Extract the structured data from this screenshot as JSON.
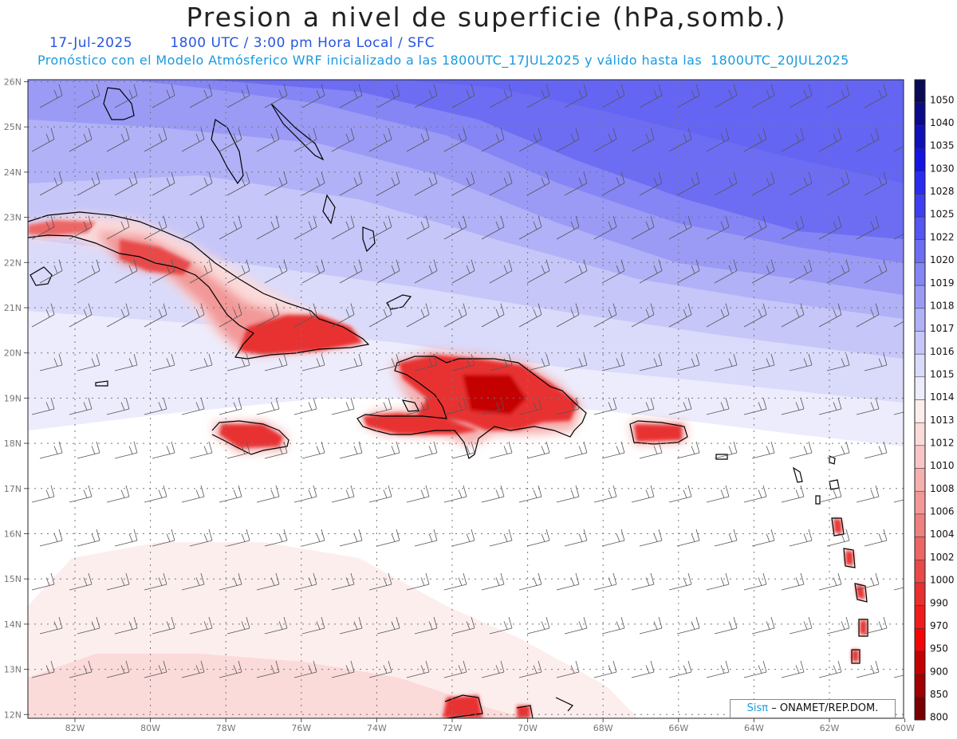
{
  "header": {
    "title": "Presion a nivel de superficie (hPa,somb.)",
    "date": "17-Jul-2025",
    "time_info": "1800 UTC / 3:00 pm Hora Local / SFC",
    "forecast_info": "Pronóstico con el Modelo Atmósferico WRF inicializado a las 1800UTC_17JUL2025 y válido hasta las  1800UTC_20JUL2025"
  },
  "axes": {
    "lat_labels": [
      "26N",
      "25N",
      "24N",
      "23N",
      "22N",
      "21N",
      "20N",
      "19N",
      "18N",
      "17N",
      "16N",
      "15N",
      "14N",
      "13N",
      "12N"
    ],
    "lon_labels": [
      "82W",
      "80W",
      "78W",
      "76W",
      "74W",
      "72W",
      "70W",
      "68W",
      "66W",
      "64W",
      "62W",
      "60W"
    ]
  },
  "colorbar": {
    "levels": [
      "1050",
      "1040",
      "1035",
      "1030",
      "1028",
      "1025",
      "1022",
      "1020",
      "1019",
      "1018",
      "1017",
      "1016",
      "1015",
      "1014",
      "1013",
      "1012",
      "1010",
      "1008",
      "1006",
      "1004",
      "1002",
      "1000",
      "990",
      "970",
      "950",
      "900",
      "850",
      "800"
    ],
    "colors": [
      "#0a0a55",
      "#0b0b8a",
      "#0f10b8",
      "#1414e0",
      "#2b2bf0",
      "#3f3ff2",
      "#5656f2",
      "#6d6df4",
      "#8585f5",
      "#9b9bf6",
      "#b1b1f8",
      "#c6c6f9",
      "#dadafb",
      "#ececfd",
      "#fdeeee",
      "#fbdada",
      "#f8c6c6",
      "#f5b0b0",
      "#f29898",
      "#ef8080",
      "#ec6666",
      "#e84a4a",
      "#e83030",
      "#ee1c1c",
      "#f20606",
      "#c40000",
      "#a00000",
      "#780000"
    ]
  },
  "credit": {
    "brand": "Sisπ",
    "rest": "– ONAMET/REP.DOM."
  }
}
